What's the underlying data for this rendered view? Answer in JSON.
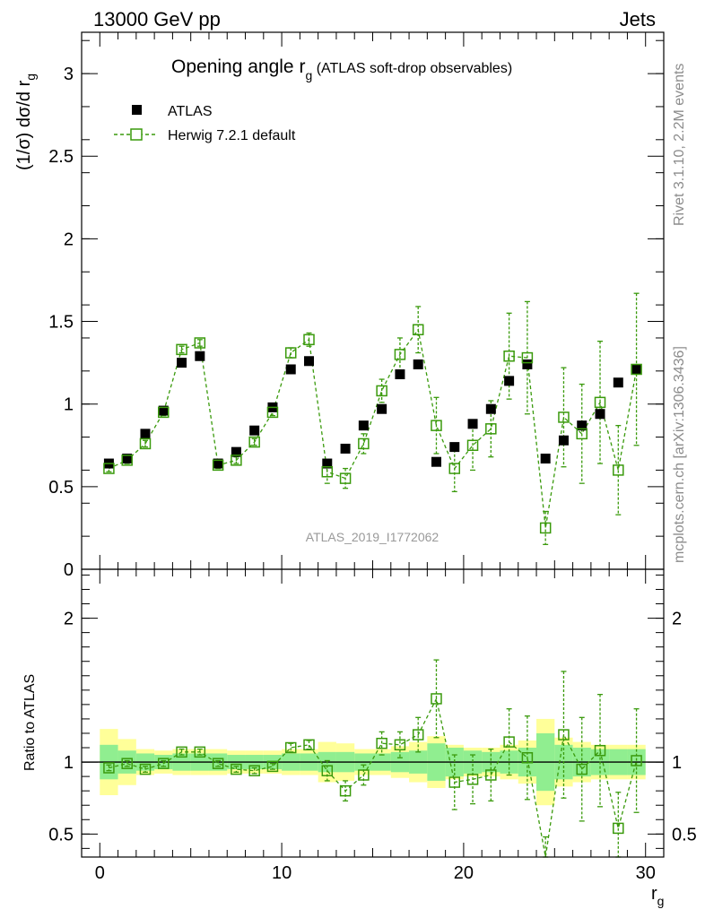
{
  "header": {
    "left": "13000 GeV pp",
    "right": "Jets"
  },
  "side_text": {
    "rivet": "Rivet 3.1.10,  2.2M events",
    "mcplots": "mcplots.cern.ch [arXiv:1306.3436]"
  },
  "chart_data": [
    {
      "type": "scatter",
      "title": "Opening angle r",
      "title_sub": "g",
      "title_suffix": " (ATLAS soft-drop observables)",
      "watermark": "ATLAS_2019_I1772062",
      "ylabel": "(1/σ) dσ/d r",
      "ylabel_sub": "g",
      "xlim": [
        -1,
        31
      ],
      "ylim": [
        0,
        3.25
      ],
      "yticks": [
        0,
        0.5,
        1,
        1.5,
        2,
        2.5,
        3
      ],
      "ytick_labels": [
        "0",
        "0.5",
        "1",
        "1.5",
        "2",
        "2.5",
        "3"
      ],
      "legend": {
        "position": "top-left"
      },
      "series": [
        {
          "name": "ATLAS",
          "color": "#000000",
          "marker": "filled-square",
          "x": [
            0.5,
            1.5,
            2.5,
            3.5,
            4.5,
            5.5,
            6.5,
            7.5,
            8.5,
            9.5,
            10.5,
            11.5,
            12.5,
            13.5,
            14.5,
            15.5,
            16.5,
            17.5,
            18.5,
            19.5,
            20.5,
            21.5,
            22.5,
            23.5,
            24.5,
            25.5,
            26.5,
            27.5,
            28.5,
            29.5
          ],
          "y": [
            0.64,
            0.67,
            0.82,
            0.96,
            1.25,
            1.29,
            0.64,
            0.71,
            0.84,
            0.98,
            1.21,
            1.26,
            0.64,
            0.73,
            0.87,
            0.97,
            1.18,
            1.24,
            0.65,
            0.74,
            0.88,
            0.97,
            1.14,
            1.24,
            0.67,
            0.78,
            0.87,
            0.94,
            1.13,
            1.21
          ]
        },
        {
          "name": "Herwig 7.2.1 default",
          "color": "#3a9a0c",
          "marker": "open-square",
          "line": "dashed",
          "x": [
            0.5,
            1.5,
            2.5,
            3.5,
            4.5,
            5.5,
            6.5,
            7.5,
            8.5,
            9.5,
            10.5,
            11.5,
            12.5,
            13.5,
            14.5,
            15.5,
            16.5,
            17.5,
            18.5,
            19.5,
            20.5,
            21.5,
            22.5,
            23.5,
            24.5,
            25.5,
            26.5,
            27.5,
            28.5,
            29.5
          ],
          "y": [
            0.61,
            0.66,
            0.76,
            0.95,
            1.33,
            1.37,
            0.63,
            0.66,
            0.77,
            0.95,
            1.31,
            1.39,
            0.59,
            0.55,
            0.76,
            1.08,
            1.3,
            1.45,
            0.87,
            0.61,
            0.75,
            0.85,
            1.29,
            1.28,
            0.25,
            0.92,
            0.82,
            1.01,
            0.6,
            1.21
          ],
          "yerr": [
            0.02,
            0.02,
            0.02,
            0.02,
            0.02,
            0.02,
            0.02,
            0.02,
            0.02,
            0.02,
            0.03,
            0.04,
            0.07,
            0.06,
            0.06,
            0.07,
            0.1,
            0.14,
            0.17,
            0.14,
            0.15,
            0.17,
            0.26,
            0.34,
            0.1,
            0.3,
            0.3,
            0.37,
            0.27,
            0.46
          ]
        }
      ]
    },
    {
      "type": "scatter",
      "ylabel": "Ratio to ATLAS",
      "xlabel": "r",
      "xlabel_sub": "g",
      "xlim": [
        -1,
        31
      ],
      "ylim": [
        0.34,
        2.34
      ],
      "xticks": [
        0,
        10,
        20,
        30
      ],
      "xtick_labels": [
        "0",
        "10",
        "20",
        "30"
      ],
      "yticks": [
        0.5,
        1,
        2
      ],
      "ytick_labels": [
        "0.5",
        "1",
        "2"
      ],
      "reference_line": 1,
      "band_colors": {
        "inner": "#90ee90",
        "outer": "#ffff99"
      },
      "band_inner_halfwidth": [
        0.12,
        0.08,
        0.06,
        0.05,
        0.06,
        0.06,
        0.06,
        0.05,
        0.05,
        0.05,
        0.06,
        0.06,
        0.07,
        0.07,
        0.06,
        0.06,
        0.07,
        0.08,
        0.13,
        0.1,
        0.08,
        0.07,
        0.08,
        0.1,
        0.2,
        0.12,
        0.1,
        0.09,
        0.09,
        0.09
      ],
      "band_outer_halfwidth": [
        0.23,
        0.16,
        0.09,
        0.08,
        0.09,
        0.09,
        0.09,
        0.08,
        0.08,
        0.08,
        0.09,
        0.09,
        0.14,
        0.13,
        0.09,
        0.09,
        0.11,
        0.14,
        0.18,
        0.12,
        0.1,
        0.1,
        0.12,
        0.15,
        0.3,
        0.17,
        0.14,
        0.12,
        0.12,
        0.12
      ],
      "series": [
        {
          "name": "Herwig 7.2.1 default",
          "color": "#3a9a0c",
          "marker": "open-square",
          "line": "dashed",
          "x": [
            0.5,
            1.5,
            2.5,
            3.5,
            4.5,
            5.5,
            6.5,
            7.5,
            8.5,
            9.5,
            10.5,
            11.5,
            12.5,
            13.5,
            14.5,
            15.5,
            16.5,
            17.5,
            18.5,
            19.5,
            20.5,
            21.5,
            22.5,
            23.5,
            24.5,
            25.5,
            26.5,
            27.5,
            28.5,
            29.5
          ],
          "y": [
            0.96,
            0.99,
            0.95,
            0.99,
            1.07,
            1.07,
            0.99,
            0.95,
            0.94,
            0.97,
            1.1,
            1.12,
            0.94,
            0.8,
            0.91,
            1.13,
            1.12,
            1.19,
            1.44,
            0.86,
            0.88,
            0.91,
            1.14,
            1.03,
            0.33,
            1.19,
            0.95,
            1.08,
            0.54,
            1.01
          ],
          "yerr": [
            0.02,
            0.02,
            0.02,
            0.02,
            0.02,
            0.02,
            0.02,
            0.02,
            0.02,
            0.02,
            0.03,
            0.03,
            0.07,
            0.07,
            0.07,
            0.08,
            0.09,
            0.12,
            0.27,
            0.19,
            0.17,
            0.18,
            0.23,
            0.29,
            0.15,
            0.44,
            0.36,
            0.39,
            0.25,
            0.36
          ]
        }
      ]
    }
  ]
}
